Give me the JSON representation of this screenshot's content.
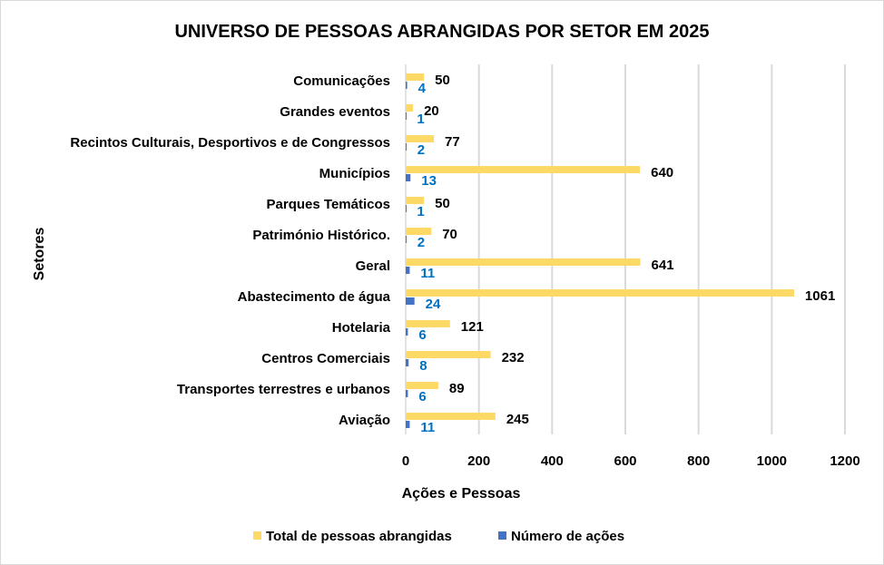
{
  "chart_data": {
    "type": "bar",
    "orientation": "horizontal",
    "title": "UNIVERSO DE PESSOAS ABRANGIDAS POR SETOR EM 2025",
    "xlabel": "Ações e Pessoas",
    "ylabel": "Setores",
    "xlim": [
      0,
      1200
    ],
    "xticks": [
      0,
      200,
      400,
      600,
      800,
      1000,
      1200
    ],
    "grid": "vertical",
    "legend_position": "bottom",
    "categories": [
      "Comunicações",
      "Grandes eventos",
      "Recintos Culturais, Desportivos e de Congressos",
      "Municípios",
      "Parques Temáticos",
      "Património Histórico.",
      "Geral",
      "Abastecimento de água",
      "Hotelaria",
      "Centros Comerciais",
      "Transportes terrestres e urbanos",
      "Aviação"
    ],
    "series": [
      {
        "name": "Total de pessoas abrangidas",
        "color": "#FFD966",
        "label_color": "#000000",
        "values": [
          50,
          20,
          77,
          640,
          50,
          70,
          641,
          1061,
          121,
          232,
          89,
          245
        ]
      },
      {
        "name": "Número de ações",
        "color": "#4472C4",
        "label_color": "#0070C0",
        "values": [
          4,
          1,
          2,
          13,
          1,
          2,
          11,
          24,
          6,
          8,
          6,
          11
        ]
      }
    ]
  }
}
